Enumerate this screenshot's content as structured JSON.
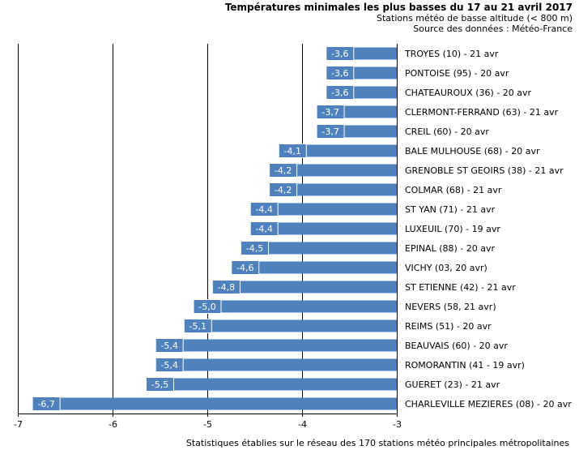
{
  "chart_data": {
    "type": "bar",
    "orientation": "horizontal",
    "title": "Températures minimales les plus basses du 17 au 21 avril 2017",
    "subtitle": [
      "Stations météo de basse altitude (< 800 m)",
      "Source des données : Météo-France"
    ],
    "footnote": "Statistiques établies sur le réseau des 170 stations météo principales métropolitaines",
    "xlim": [
      -7,
      -3
    ],
    "xticks": [
      -7,
      -6,
      -5,
      -4,
      -3
    ],
    "xtick_labels": [
      "-7",
      "-6",
      "-5",
      "-4",
      "-3"
    ],
    "grid": true,
    "color": "#4f81bd",
    "categories": [
      "TROYES (10) - 21 avr",
      "PONTOISE (95) - 20 avr",
      "CHATEAUROUX (36) - 20 avr",
      "CLERMONT-FERRAND (63) - 21 avr",
      "CREIL (60) - 20 avr",
      "BALE MULHOUSE (68) - 20 avr",
      "GRENOBLE ST GEOIRS (38) - 21 avr",
      "COLMAR (68) - 21 avr",
      "ST YAN (71) - 21 avr",
      "LUXEUIL (70) - 19 avr",
      "EPINAL (88) - 20 avr",
      "VICHY (03, 20 avr)",
      "ST ETIENNE (42) - 21 avr",
      "NEVERS (58, 21 avr)",
      "REIMS (51) - 20 avr",
      "BEAUVAIS (60) - 20 avr",
      "ROMORANTIN (41 - 19 avr)",
      "GUERET (23) - 21 avr",
      "CHARLEVILLE MEZIERES (08) - 20 avr"
    ],
    "values": [
      -3.6,
      -3.6,
      -3.6,
      -3.7,
      -3.7,
      -4.1,
      -4.2,
      -4.2,
      -4.4,
      -4.4,
      -4.5,
      -4.6,
      -4.8,
      -5.0,
      -5.1,
      -5.4,
      -5.4,
      -5.5,
      -6.7
    ],
    "value_labels": [
      "-3,6",
      "-3,6",
      "-3,6",
      "-3,7",
      "-3,7",
      "-4,1",
      "-4,2",
      "-4,2",
      "-4,4",
      "-4,4",
      "-4,5",
      "-4,6",
      "-4,8",
      "-5,0",
      "-5,1",
      "-5,4",
      "-5,4",
      "-5,5",
      "-6,7"
    ]
  }
}
